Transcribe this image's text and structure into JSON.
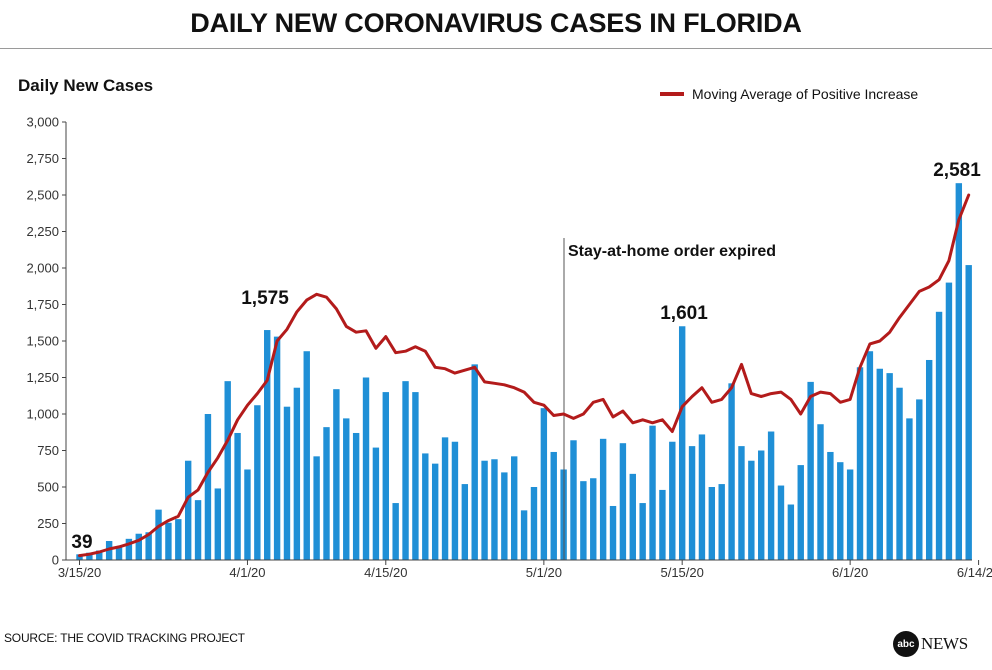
{
  "title": "DAILY NEW CORONAVIRUS CASES IN FLORIDA",
  "source": "SOURCE: THE COVID TRACKING PROJECT",
  "logo": {
    "mark": "abc",
    "text": "NEWS"
  },
  "colors": {
    "bar": "#1f8fd6",
    "line": "#b31b1b",
    "axis": "#444444"
  },
  "chart_data": {
    "type": "bar",
    "ylabel": "Daily New Cases",
    "ylim": [
      0,
      3000
    ],
    "yticks": [
      "0",
      "250",
      "500",
      "750",
      "1,000",
      "1,250",
      "1,500",
      "1,750",
      "2,000",
      "2,250",
      "2,500",
      "2,750",
      "3,000"
    ],
    "xticks": [
      "3/15/20",
      "4/1/20",
      "4/15/20",
      "5/1/20",
      "5/15/20",
      "6/1/20",
      "6/14/20"
    ],
    "legend": {
      "label": "Moving Average of Positive Increase",
      "position": "top-right"
    },
    "grid": false,
    "annotations": {
      "vline_label": "Stay-at-home order expired"
    },
    "data_labels": [
      "39",
      "1,575",
      "1,601",
      "2,581"
    ],
    "series": [
      {
        "values": [
          39,
          50,
          65,
          130,
          90,
          145,
          180,
          190,
          345,
          255,
          280,
          680,
          410,
          1000,
          490,
          1225,
          870,
          620,
          1060,
          1575,
          1530,
          1050,
          1180,
          1430,
          710,
          910,
          1170,
          970,
          870,
          1250,
          770,
          1150,
          390,
          1225,
          1150,
          730,
          660,
          840,
          810,
          520,
          1340,
          680,
          690,
          600,
          710,
          340,
          500,
          1040,
          740,
          620,
          820,
          540,
          560,
          830,
          370,
          800,
          590,
          390,
          920,
          480,
          810,
          1601,
          780,
          860,
          500,
          520,
          1210,
          780,
          680,
          750,
          880,
          510,
          380,
          650,
          1220,
          930,
          740,
          670,
          620,
          1320,
          1430,
          1310,
          1280,
          1180,
          970,
          1100,
          1370,
          1700,
          1900,
          2581,
          2020
        ]
      },
      {
        "name": "Moving Average of Positive Increase",
        "values": [
          30,
          40,
          55,
          75,
          90,
          110,
          135,
          175,
          230,
          270,
          300,
          430,
          480,
          600,
          700,
          820,
          960,
          1060,
          1140,
          1230,
          1500,
          1580,
          1700,
          1780,
          1820,
          1800,
          1720,
          1600,
          1560,
          1570,
          1450,
          1530,
          1420,
          1430,
          1460,
          1430,
          1320,
          1310,
          1280,
          1300,
          1320,
          1220,
          1210,
          1200,
          1180,
          1150,
          1080,
          1060,
          990,
          1000,
          970,
          1000,
          1080,
          1100,
          980,
          1020,
          940,
          960,
          940,
          960,
          880,
          1050,
          1120,
          1180,
          1080,
          1100,
          1180,
          1340,
          1140,
          1120,
          1140,
          1150,
          1100,
          1000,
          1120,
          1150,
          1140,
          1080,
          1100,
          1320,
          1480,
          1500,
          1560,
          1660,
          1750,
          1840,
          1870,
          1920,
          2050,
          2330,
          2500
        ]
      }
    ]
  }
}
